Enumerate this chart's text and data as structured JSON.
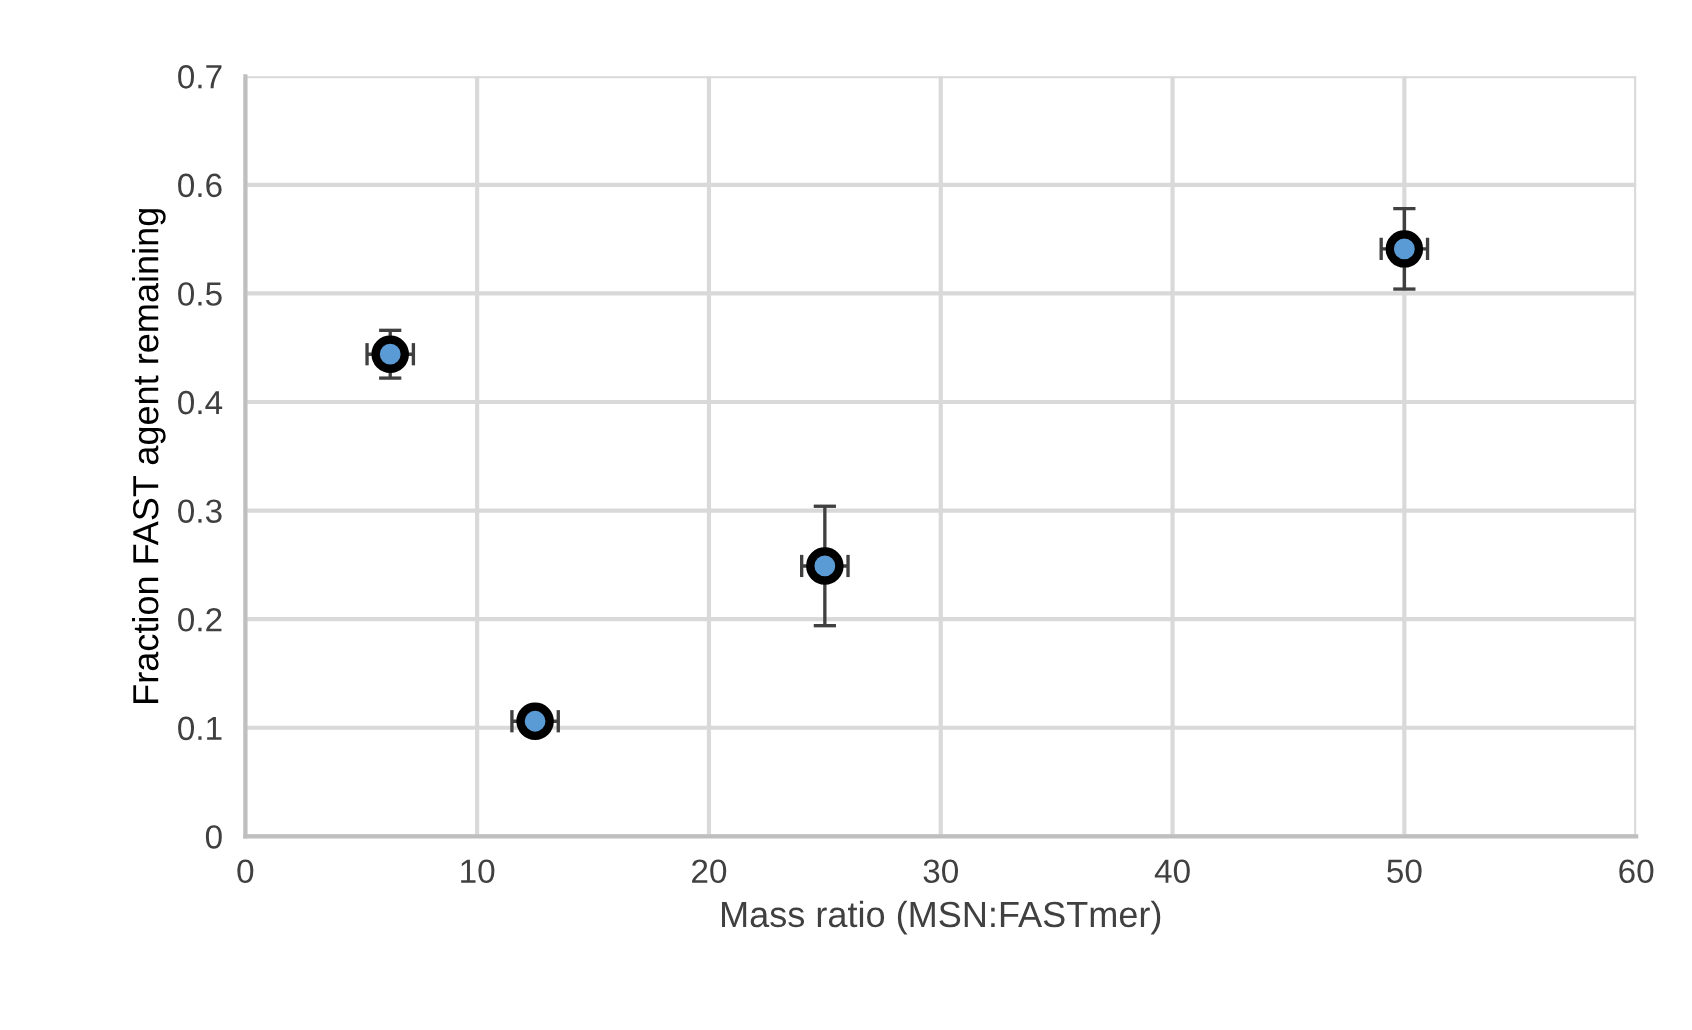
{
  "chart_data": {
    "type": "scatter",
    "xlabel": "Mass ratio (MSN:FASTmer)",
    "ylabel": "Fraction FAST agent remaining",
    "x": [
      6.25,
      12.5,
      25,
      50
    ],
    "series": [
      {
        "color": "#5b9bd5",
        "values": [
          0.444,
          0.106,
          0.249,
          0.541
        ],
        "errors": [
          0.022,
          0.006,
          0.055,
          0.037
        ],
        "xerrors": [
          1,
          1,
          1,
          1
        ]
      }
    ],
    "xlim": [
      0,
      60
    ],
    "xticks": [
      0,
      10,
      20,
      30,
      40,
      50,
      60
    ],
    "ylim": [
      0,
      0.7
    ],
    "yticks": [
      0,
      0.1,
      0.2,
      0.3,
      0.4,
      0.5,
      0.6,
      0.7
    ],
    "grid": true,
    "marker": "circle"
  }
}
